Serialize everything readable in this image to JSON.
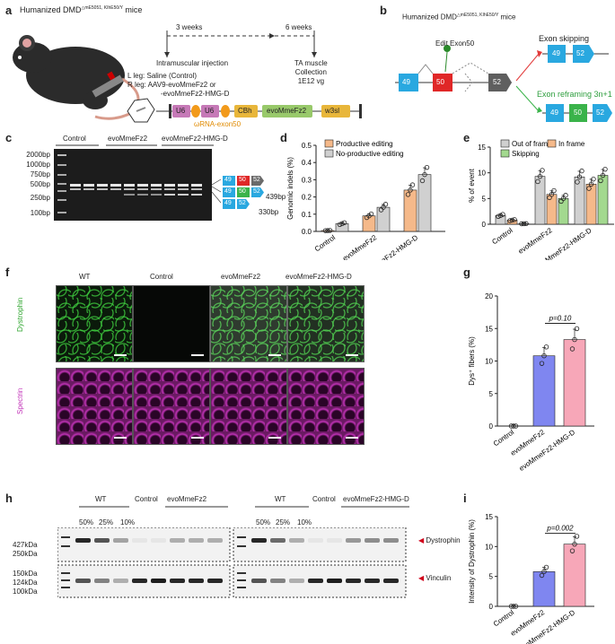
{
  "panel_labels": {
    "a": "a",
    "b": "b",
    "c": "c",
    "d": "d",
    "e": "e",
    "f": "f",
    "g": "g",
    "h": "h",
    "i": "i"
  },
  "panel_a": {
    "title_prefix": "Humanized DMD",
    "title_sup": "△mE5051, KIhE50/Y",
    "title_suffix": " mice",
    "timeline_3w": "3 weeks",
    "timeline_6w": "6 weeks",
    "injection": "Intramuscular injection",
    "collection": "TA muscle\nCollection\n1E12 vg",
    "l_leg": "L leg: Saline (Control)",
    "r_leg_1": "R leg: AAV9-evoMmeFz2 or",
    "r_leg_2": "-evoMmeFz2-HMG-D",
    "construct": [
      "U6",
      "U6",
      "CBh",
      "evoMmeFz2",
      "w3sl"
    ],
    "wrna": "ωRNA-exon50"
  },
  "panel_b": {
    "title_prefix": "Humanized DMD",
    "title_sup": "△mE5051, KIhE50/Y",
    "title_suffix": " mice",
    "edit": "Edit Exon50",
    "exons_top": [
      "49",
      "50",
      "52"
    ],
    "skipping": "Exon skipping",
    "reframing": "Exon reframing 3n+1",
    "skip_exons": [
      "49",
      "52"
    ],
    "reframe_exons": [
      "49",
      "50",
      "52"
    ]
  },
  "panel_c": {
    "ladder": [
      "2000bp",
      "1000bp",
      "750bp",
      "500bp",
      "250bp",
      "100bp"
    ],
    "groups": [
      "Control",
      "evoMmeFz2",
      "evoMmeFz2-HMG-D"
    ],
    "band_439": "439bp",
    "band_330": "330bp",
    "exons_1": [
      "49",
      "50",
      "52"
    ],
    "exons_2": [
      "49",
      "50",
      "52"
    ],
    "exons_3": [
      "49",
      "52"
    ]
  },
  "panel_d": {
    "chart_data": {
      "type": "bar",
      "ylabel": "Genomic indels (%)",
      "ylim": [
        0,
        0.5
      ],
      "yticks": [
        "0.0",
        "0.1",
        "0.2",
        "0.3",
        "0.4",
        "0.5"
      ],
      "categories": [
        "Control",
        "evoMmeFz2",
        "evoMmeFz2-HMG-D"
      ],
      "series": [
        {
          "name": "Productive editing",
          "color": "#f5b98a",
          "values": [
            0.005,
            0.09,
            0.24
          ]
        },
        {
          "name": "No-productive editing",
          "color": "#d0d0d0",
          "values": [
            0.045,
            0.14,
            0.33
          ]
        }
      ]
    }
  },
  "panel_e": {
    "chart_data": {
      "type": "bar",
      "ylabel": "% of event",
      "ylim": [
        0,
        15
      ],
      "yticks": [
        "0",
        "5",
        "10",
        "15"
      ],
      "categories": [
        "Control",
        "evoMmeFz2",
        "evoMmeFz2-HMG-D"
      ],
      "series": [
        {
          "name": "Out of frame",
          "color": "#d0d0d0",
          "values": [
            1.7,
            9.3,
            9.2
          ]
        },
        {
          "name": "In frame",
          "color": "#f5b98a",
          "values": [
            0.8,
            5.8,
            7.8
          ]
        },
        {
          "name": "Skipping",
          "color": "#a3d98f",
          "values": [
            0.1,
            5.0,
            9.5
          ]
        }
      ]
    }
  },
  "panel_f": {
    "columns": [
      "WT",
      "Control",
      "evoMmeFz2",
      "evoMmeFz2-HMG-D"
    ],
    "row_dys": "Dystrophin",
    "row_spec": "Spectrin",
    "scale": "100 μm"
  },
  "panel_g": {
    "chart_data": {
      "type": "bar",
      "ylabel": "Dys⁺ fibers (%)",
      "ylim": [
        0,
        20
      ],
      "yticks": [
        "0",
        "5",
        "10",
        "15",
        "20"
      ],
      "categories": [
        "Control",
        "evoMmeFz2",
        "evoMmeFz2-HMG-D"
      ],
      "colors": [
        "#888888",
        "#7f86f0",
        "#f7a7b8"
      ],
      "values": [
        0,
        10.8,
        13.3
      ],
      "pvalue": "p=0.10"
    }
  },
  "panel_h": {
    "markers_top": [
      "427kDa",
      "250kDa"
    ],
    "markers_bot": [
      "150kDa",
      "124kDa",
      "100kDa"
    ],
    "left_groups": [
      "WT",
      "Control",
      "evoMmeFz2"
    ],
    "right_groups": [
      "WT",
      "Control",
      "evoMmeFz2-HMG-D"
    ],
    "wt_dilutions": [
      "50%",
      "25%",
      "10%"
    ],
    "dystrophin": "Dystrophin",
    "vinculin": "Vinculin"
  },
  "panel_i": {
    "chart_data": {
      "type": "bar",
      "ylabel": "Intensity of Dystrophin (%)",
      "ylim": [
        0,
        15
      ],
      "yticks": [
        "0",
        "5",
        "10",
        "15"
      ],
      "categories": [
        "Control",
        "evoMmeFz2",
        "evoMmeFz2-HMG-D"
      ],
      "colors": [
        "#888888",
        "#7f86f0",
        "#f7a7b8"
      ],
      "values": [
        0,
        5.8,
        10.4
      ],
      "pvalue": "p=0.002"
    }
  }
}
